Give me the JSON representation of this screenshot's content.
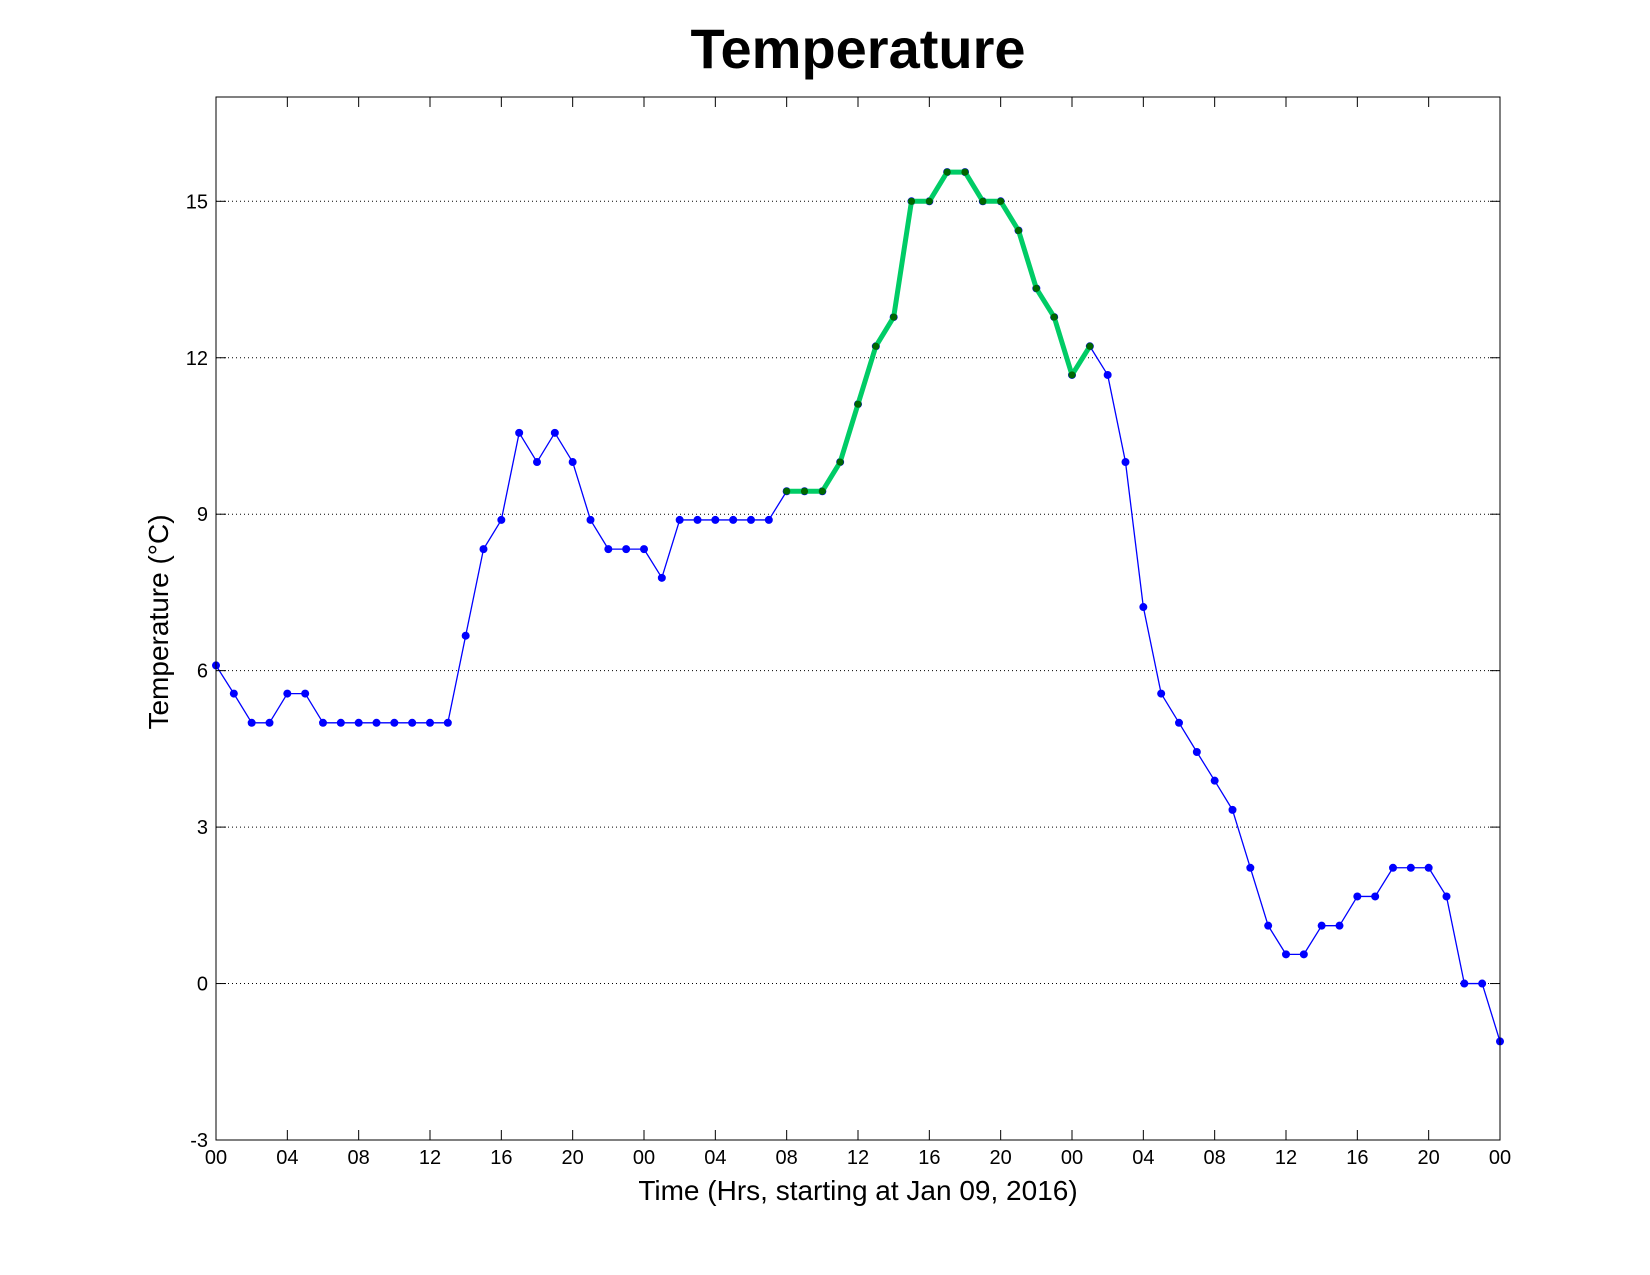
{
  "chart_data": {
    "type": "line",
    "title": "Temperature",
    "xlabel": "Time (Hrs, starting at Jan 09, 2016)",
    "ylabel": "Temperature (°C)",
    "x_unit": "hours",
    "xlim": [
      0,
      72
    ],
    "ylim": [
      -3,
      17
    ],
    "y_ticks": [
      -3,
      0,
      3,
      6,
      9,
      12,
      15
    ],
    "x_ticks": [
      0,
      4,
      8,
      12,
      16,
      20,
      24,
      28,
      32,
      36,
      40,
      44,
      48,
      52,
      56,
      60,
      64,
      68,
      72
    ],
    "x_tick_labels": [
      "00",
      "04",
      "08",
      "12",
      "16",
      "20",
      "00",
      "04",
      "08",
      "12",
      "16",
      "20",
      "00",
      "04",
      "08",
      "12",
      "16",
      "20",
      "00"
    ],
    "grid": "horizontal-dotted",
    "series": [
      {
        "color": "#0000ff",
        "marker": "dot",
        "x": [
          0,
          1,
          2,
          3,
          4,
          5,
          6,
          7,
          8,
          9,
          10,
          11,
          12,
          13,
          14,
          15,
          16,
          17,
          18,
          19,
          20,
          21,
          22,
          23,
          24,
          25,
          26,
          27,
          28,
          29,
          30,
          31,
          32,
          33,
          34,
          35,
          36,
          37,
          38,
          39,
          40,
          41,
          42,
          43,
          44,
          45,
          46,
          47,
          48,
          49,
          50,
          51,
          52,
          53,
          54,
          55,
          56,
          57,
          58,
          59,
          60,
          61,
          62,
          63,
          64,
          65,
          66,
          67,
          68,
          69,
          70,
          71,
          72
        ],
        "values": [
          6.1,
          5.56,
          5.0,
          5.0,
          5.56,
          5.56,
          5.0,
          5.0,
          5.0,
          5.0,
          5.0,
          5.0,
          5.0,
          5.0,
          6.67,
          8.33,
          8.89,
          10.56,
          10.0,
          10.56,
          10.0,
          8.89,
          8.33,
          8.33,
          8.33,
          7.78,
          8.89,
          8.89,
          8.89,
          8.89,
          8.89,
          8.89,
          9.44,
          9.44,
          9.44,
          10.0,
          11.11,
          12.22,
          12.78,
          15.0,
          15.0,
          15.56,
          15.56,
          15.0,
          15.0,
          14.44,
          13.33,
          12.78,
          11.67,
          12.22,
          11.67,
          10.0,
          7.22,
          5.56,
          5.0,
          4.44,
          3.89,
          3.33,
          2.22,
          1.11,
          0.56,
          0.56,
          1.11,
          1.11,
          1.67,
          1.67,
          2.22,
          2.22,
          2.22,
          1.67,
          0.0,
          0.0,
          -1.11
        ]
      },
      {
        "color": "#00cc66",
        "marker_color": "#006600",
        "marker": "dot",
        "highlight": true,
        "x": [
          32,
          33,
          34,
          35,
          36,
          37,
          38,
          39,
          40,
          41,
          42,
          43,
          44,
          45,
          46,
          47,
          48,
          49
        ],
        "values": [
          9.44,
          9.44,
          9.44,
          10.0,
          11.11,
          12.22,
          12.78,
          15.0,
          15.0,
          15.56,
          15.56,
          15.0,
          15.0,
          14.44,
          13.33,
          12.78,
          11.67,
          12.22
        ]
      }
    ]
  }
}
